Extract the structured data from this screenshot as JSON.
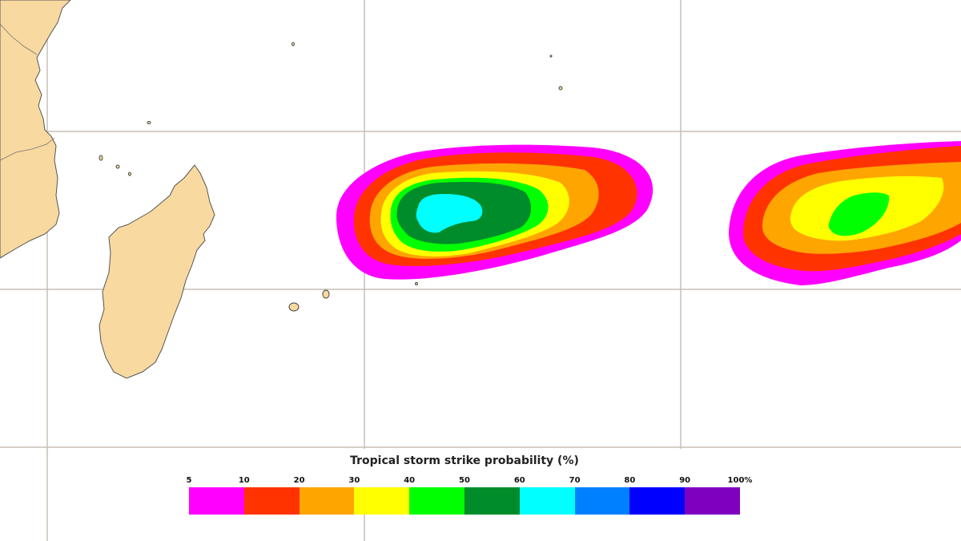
{
  "map": {
    "land_color": "#f8d9a0",
    "grid_color": "#c7bfb5"
  },
  "legend": {
    "title": "Tropical storm strike probability (%)",
    "labels": [
      "5",
      "10",
      "20",
      "30",
      "40",
      "50",
      "60",
      "70",
      "80",
      "90",
      "100%"
    ],
    "colors": [
      "#ff00ff",
      "#ff3300",
      "#ffa500",
      "#ffff00",
      "#00ff00",
      "#008c2a",
      "#00ffff",
      "#0080ff",
      "#0000ff",
      "#8000c0"
    ]
  }
}
